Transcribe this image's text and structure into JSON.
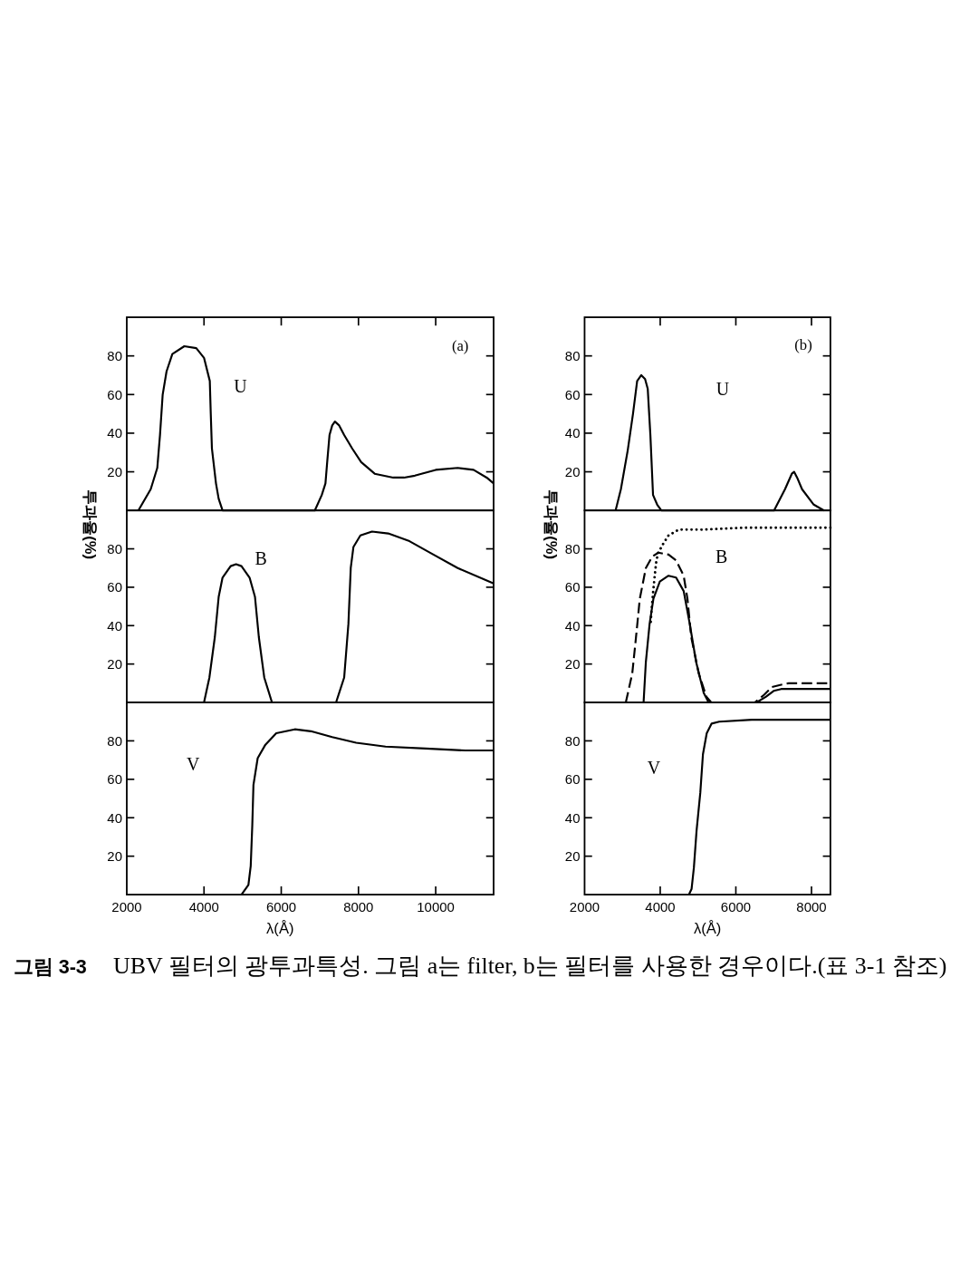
{
  "chart_data": [
    {
      "type": "line",
      "title": "U",
      "annotations": [
        "(a)"
      ],
      "color": "#000000",
      "x": [
        2300,
        2620,
        2790,
        2860,
        2930,
        3030,
        3180,
        3490,
        3800,
        4000,
        4150,
        4175,
        4205,
        4310,
        4380,
        4480,
        6870,
        7050,
        7145,
        7190,
        7250,
        7320,
        7390,
        7500,
        7630,
        7840,
        8070,
        8420,
        8900,
        9180,
        9460,
        10000,
        10570,
        10980,
        11320,
        11500
      ],
      "values": [
        0,
        11,
        22,
        39,
        60,
        72,
        81,
        85,
        84,
        79,
        67,
        50,
        32,
        14,
        6,
        0,
        0,
        8,
        14,
        25,
        39,
        44,
        46,
        44,
        39,
        32,
        25,
        19,
        17,
        17,
        18,
        21,
        22,
        21,
        17,
        14
      ],
      "xlim": [
        2000,
        11500
      ],
      "ylim": [
        0,
        100
      ],
      "xticks": [
        4000,
        6000,
        8000,
        10000
      ],
      "yticks": [
        20,
        40,
        60,
        80
      ],
      "tick_labels": "y"
    },
    {
      "type": "line",
      "title": "B",
      "ylabel": "투과율(%)",
      "color": "#000000",
      "x": [
        4000,
        4140,
        4280,
        4380,
        4480,
        4690,
        4830,
        4970,
        5180,
        5320,
        5420,
        5560,
        5760,
        7420,
        7630,
        7740,
        7800,
        7870,
        8050,
        8350,
        8770,
        9320,
        9940,
        10570,
        11500
      ],
      "values": [
        0,
        13,
        34,
        55,
        65,
        71,
        72,
        71,
        65,
        55,
        34,
        13,
        0,
        0,
        13,
        41,
        70,
        81,
        87,
        89,
        88,
        84,
        77,
        70,
        62
      ],
      "xlim": [
        2000,
        11500
      ],
      "ylim": [
        0,
        100
      ],
      "yticks": [
        20,
        40,
        60,
        80
      ],
      "tick_labels": "y"
    },
    {
      "type": "line",
      "title": "V",
      "xlabel": "λ(Å)",
      "color": "#000000",
      "x": [
        4970,
        5150,
        5210,
        5250,
        5280,
        5390,
        5590,
        5870,
        6350,
        6770,
        7320,
        7940,
        8700,
        9740,
        10770,
        11500
      ],
      "values": [
        0,
        5,
        15,
        36,
        57,
        71,
        78,
        84,
        86,
        85,
        82,
        79,
        77,
        76,
        75,
        75
      ],
      "xlim": [
        2000,
        11500
      ],
      "ylim": [
        0,
        100
      ],
      "xticks": [
        2000,
        4000,
        6000,
        8000,
        10000
      ],
      "yticks": [
        20,
        40,
        60,
        80
      ]
    },
    {
      "type": "line",
      "title": "U",
      "annotations": [
        "(b)"
      ],
      "color": "#000000",
      "x": [
        2820,
        2960,
        3140,
        3280,
        3390,
        3500,
        3600,
        3670,
        3740,
        3810,
        3920,
        4030,
        7010,
        7300,
        7480,
        7540,
        7620,
        7750,
        8060,
        8330
      ],
      "values": [
        0,
        11,
        31,
        50,
        67,
        70,
        68,
        63,
        39,
        8,
        3,
        0,
        0,
        11,
        19,
        20,
        17,
        11,
        3,
        0
      ],
      "xlim": [
        2000,
        8500
      ],
      "ylim": [
        0,
        100
      ],
      "xticks": [
        4000,
        6000,
        8000
      ],
      "yticks": [
        20,
        40,
        60,
        80
      ],
      "tick_labels": "y"
    },
    {
      "type": "line",
      "title": "B",
      "ylabel": "투과율(%)",
      "series": [
        {
          "color": "#000000",
          "line_style": "dashed",
          "x": [
            3090,
            3260,
            3360,
            3460,
            3620,
            3790,
            3950,
            4220,
            4420,
            4620,
            4720,
            4820,
            5020,
            5220,
            5350,
            6500,
            6750,
            6950,
            7150,
            7400,
            8500
          ],
          "values": [
            0,
            15,
            34,
            54,
            70,
            76,
            78,
            77,
            74,
            66,
            54,
            34,
            15,
            3,
            0,
            0,
            4,
            8,
            9,
            10,
            10
          ]
        },
        {
          "color": "#000000",
          "line_style": "dotted",
          "x": [
            3750,
            3770,
            3810,
            3860,
            3900,
            3950,
            4090,
            4220,
            4490,
            5090,
            6220,
            7640,
            8500
          ],
          "values": [
            42,
            48,
            57,
            67,
            74,
            78,
            83,
            87,
            90,
            90,
            91,
            91,
            91
          ]
        },
        {
          "color": "#000000",
          "line_style": "solid",
          "x": [
            3560,
            3620,
            3720,
            3820,
            3990,
            4220,
            4420,
            4620,
            4780,
            4950,
            5150,
            5280,
            6550,
            6800,
            7000,
            7200,
            8500
          ],
          "values": [
            0,
            21,
            41,
            54,
            63,
            66,
            65,
            58,
            41,
            21,
            5,
            0,
            0,
            3,
            6,
            7,
            7
          ]
        }
      ],
      "xlim": [
        2000,
        8500
      ],
      "ylim": [
        0,
        100
      ],
      "yticks": [
        20,
        40,
        60,
        80
      ],
      "tick_labels": "y"
    },
    {
      "type": "line",
      "title": "V",
      "xlabel": "λ(Å)",
      "color": "#000000",
      "x": [
        4760,
        4830,
        4890,
        4960,
        5060,
        5130,
        5230,
        5360,
        5560,
        6420,
        8500
      ],
      "values": [
        0,
        3,
        14,
        33,
        53,
        73,
        84,
        89,
        90,
        91,
        91
      ],
      "xlim": [
        2000,
        8500
      ],
      "ylim": [
        0,
        100
      ],
      "xticks": [
        2000,
        4000,
        6000,
        8000
      ],
      "yticks": [
        20,
        40,
        60,
        80
      ]
    },
    {
      "type": "other",
      "annotations": [
        "그림 3-3",
        "UBV 필터의 광투과특성. 그림 a는 filter, b는 필터를 사용한 경우이다.(표 3-1 참조)"
      ]
    }
  ]
}
